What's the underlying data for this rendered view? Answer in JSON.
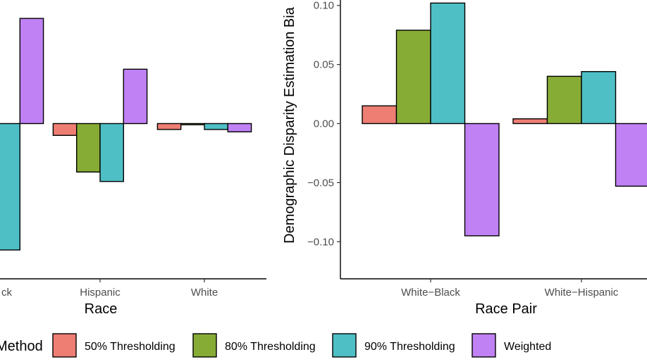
{
  "colors": {
    "50% Thresholding": "#ee7e73",
    "80% Thresholding": "#87ac36",
    "90% Thresholding": "#4fbfc6",
    "Weighted": "#c081f4"
  },
  "legend": {
    "title": "Method",
    "items": [
      "50% Thresholding",
      "80% Thresholding",
      "90% Thresholding",
      "Weighted"
    ]
  },
  "chart_data": [
    {
      "type": "bar",
      "title": "",
      "xlabel": "Race",
      "ylabel": "",
      "categories": [
        "Black",
        "Hispanic",
        "White"
      ],
      "visible_category_labels": [
        "ck",
        "Hispanic",
        "White"
      ],
      "series": [
        {
          "name": "50% Thresholding",
          "values": [
            null,
            -0.01,
            -0.005
          ]
        },
        {
          "name": "80% Thresholding",
          "values": [
            null,
            -0.041,
            -0.001
          ]
        },
        {
          "name": "90% Thresholding",
          "values": [
            -0.107,
            -0.049,
            -0.005
          ]
        },
        {
          "name": "Weighted",
          "values": [
            0.089,
            0.046,
            -0.007
          ]
        }
      ]
    },
    {
      "type": "bar",
      "title": "",
      "xlabel": "Race Pair",
      "ylabel": "Demographic Disparity Estimation Bia",
      "categories": [
        "White−Black",
        "White−Hispanic"
      ],
      "yticks": [
        "−0.10",
        "−0.05",
        "0.00",
        "0.05",
        "0.10"
      ],
      "series": [
        {
          "name": "50% Thresholding",
          "values": [
            0.015,
            0.004
          ]
        },
        {
          "name": "80% Thresholding",
          "values": [
            0.079,
            0.04
          ]
        },
        {
          "name": "90% Thresholding",
          "values": [
            0.102,
            0.044
          ]
        },
        {
          "name": "Weighted",
          "values": [
            -0.095,
            -0.053
          ]
        }
      ]
    }
  ]
}
